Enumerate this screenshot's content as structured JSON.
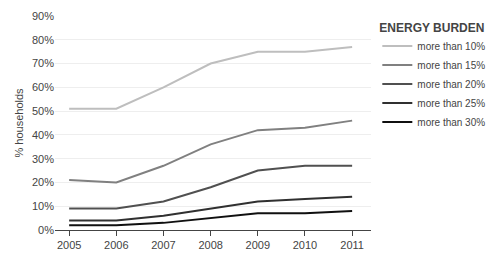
{
  "chart_data": {
    "type": "line",
    "x": [
      2005,
      2006,
      2007,
      2008,
      2009,
      2010,
      2011
    ],
    "series": [
      {
        "name": "more than 10%",
        "color": "#bebebe",
        "values": [
          51,
          51,
          60,
          70,
          75,
          75,
          77
        ]
      },
      {
        "name": "more than 15%",
        "color": "#808080",
        "values": [
          21,
          20,
          27,
          36,
          42,
          43,
          46
        ]
      },
      {
        "name": "more than 20%",
        "color": "#505050",
        "values": [
          9,
          9,
          12,
          18,
          25,
          27,
          27
        ]
      },
      {
        "name": "more than 25%",
        "color": "#303030",
        "values": [
          4,
          4,
          6,
          9,
          12,
          13,
          14
        ]
      },
      {
        "name": "more than 30%",
        "color": "#101010",
        "values": [
          2,
          2,
          3,
          5,
          7,
          7,
          8
        ]
      }
    ],
    "ylabel": "% households",
    "legend_title": "ENERGY BURDEN",
    "legend": "right",
    "grid": "y",
    "xlim": [
      2004.7,
      2011.4
    ],
    "xticks": [
      2005,
      2006,
      2007,
      2008,
      2009,
      2010,
      2011
    ],
    "ylim": [
      0,
      90
    ],
    "yticks": [
      {
        "value": 0,
        "label": "0%"
      },
      {
        "value": 10,
        "label": "10%"
      },
      {
        "value": 20,
        "label": "20%"
      },
      {
        "value": 30,
        "label": "30%"
      },
      {
        "value": 40,
        "label": "40%"
      },
      {
        "value": 50,
        "label": "50%"
      },
      {
        "value": 60,
        "label": "60%"
      },
      {
        "value": 70,
        "label": "70%"
      },
      {
        "value": 80,
        "label": "80%"
      },
      {
        "value": 90,
        "label": "90%"
      }
    ]
  }
}
